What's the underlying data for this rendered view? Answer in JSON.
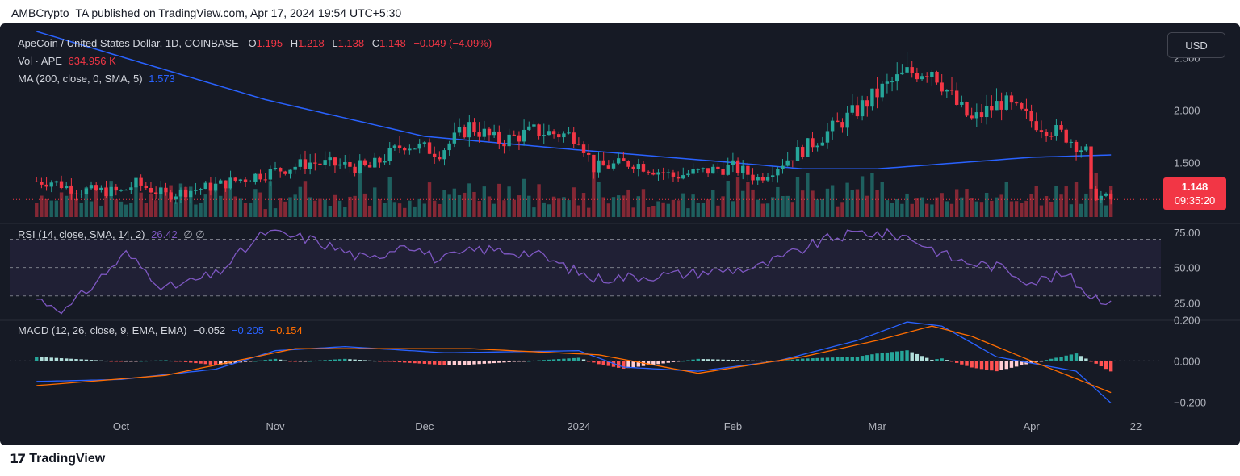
{
  "header": {
    "text": "AMBCrypto_TA published on TradingView.com, Apr 17, 2024 19:54 UTC+5:30"
  },
  "footer": {
    "logo_mark": "17",
    "brand": "TradingView"
  },
  "controls": {
    "currency_button": "USD"
  },
  "legend": {
    "symbol": "ApeCoin / United States Dollar, 1D, COINBASE",
    "o_label": "O",
    "o_value": "1.195",
    "h_label": "H",
    "h_value": "1.218",
    "l_label": "L",
    "l_value": "1.138",
    "c_label": "C",
    "c_value": "1.148",
    "change": "−0.049 (−4.09%)",
    "vol_label": "Vol · APE",
    "vol_value": "634.956 K",
    "ma_label": "MA (200, close, 0, SMA, 5)",
    "ma_value": "1.573",
    "rsi_label": "RSI (14, close, SMA, 14, 2)",
    "rsi_value": "26.42",
    "rsi_extra": "∅ ∅",
    "macd_label": "MACD (12, 26, close, 9, EMA, EMA)",
    "macd_hist": "−0.052",
    "macd_line": "−0.205",
    "macd_signal": "−0.154"
  },
  "price_tag": {
    "price": "1.148",
    "countdown": "09:35:20"
  },
  "colors": {
    "up": "#26a69a",
    "down": "#f23645",
    "ma": "#2962ff",
    "rsi": "#7e57c2",
    "macd": "#2962ff",
    "signal": "#ff6d00",
    "background": "#161a25"
  },
  "chart_data": [
    {
      "type": "candlestick",
      "title": "ApeCoin / United States Dollar, 1D, COINBASE",
      "y_ticks": [
        "2.500",
        "2.000",
        "1.500"
      ],
      "ylim": [
        0.95,
        2.75
      ],
      "x_ticks": [
        "Oct",
        "Nov",
        "Dec",
        "2024",
        "Feb",
        "Mar",
        "Apr",
        "22"
      ],
      "close_anchors": [
        {
          "date": "2023-09-17",
          "close": 1.32
        },
        {
          "date": "2023-09-22",
          "close": 1.24
        },
        {
          "date": "2023-10-01",
          "close": 1.22
        },
        {
          "date": "2023-10-04",
          "close": 1.3
        },
        {
          "date": "2023-10-10",
          "close": 1.19
        },
        {
          "date": "2023-10-20",
          "close": 1.28
        },
        {
          "date": "2023-10-30",
          "close": 1.4
        },
        {
          "date": "2023-11-08",
          "close": 1.5
        },
        {
          "date": "2023-11-20",
          "close": 1.45
        },
        {
          "date": "2023-11-27",
          "close": 1.68
        },
        {
          "date": "2023-12-04",
          "close": 1.6
        },
        {
          "date": "2023-12-10",
          "close": 1.85
        },
        {
          "date": "2023-12-16",
          "close": 1.7
        },
        {
          "date": "2023-12-23",
          "close": 1.8
        },
        {
          "date": "2024-01-01",
          "close": 1.75
        },
        {
          "date": "2024-01-04",
          "close": 1.45
        },
        {
          "date": "2024-01-12",
          "close": 1.5
        },
        {
          "date": "2024-01-20",
          "close": 1.37
        },
        {
          "date": "2024-02-01",
          "close": 1.46
        },
        {
          "date": "2024-02-06",
          "close": 1.35
        },
        {
          "date": "2024-02-18",
          "close": 1.72
        },
        {
          "date": "2024-02-26",
          "close": 2.0
        },
        {
          "date": "2024-03-02",
          "close": 2.2
        },
        {
          "date": "2024-03-07",
          "close": 2.35
        },
        {
          "date": "2024-03-12",
          "close": 2.4
        },
        {
          "date": "2024-03-17",
          "close": 2.05
        },
        {
          "date": "2024-03-20",
          "close": 1.9
        },
        {
          "date": "2024-03-26",
          "close": 2.08
        },
        {
          "date": "2024-04-01",
          "close": 1.9
        },
        {
          "date": "2024-04-08",
          "close": 1.75
        },
        {
          "date": "2024-04-12",
          "close": 1.6
        },
        {
          "date": "2024-04-13",
          "close": 1.2
        },
        {
          "date": "2024-04-17",
          "close": 1.148
        }
      ],
      "ma200_anchors": [
        {
          "date": "2023-09-14",
          "value": 2.75
        },
        {
          "date": "2023-10-30",
          "value": 2.1
        },
        {
          "date": "2023-12-01",
          "value": 1.75
        },
        {
          "date": "2024-01-01",
          "value": 1.62
        },
        {
          "date": "2024-02-01",
          "value": 1.5
        },
        {
          "date": "2024-02-15",
          "value": 1.44
        },
        {
          "date": "2024-03-01",
          "value": 1.44
        },
        {
          "date": "2024-04-01",
          "value": 1.55
        },
        {
          "date": "2024-04-17",
          "value": 1.573
        }
      ]
    },
    {
      "type": "line",
      "title": "RSI (14, close, SMA, 14, 2)",
      "y_ticks": [
        "75.00",
        "50.00",
        "25.00"
      ],
      "ylim": [
        15,
        80
      ],
      "bands": [
        70,
        50,
        30
      ],
      "rsi_anchors": [
        {
          "date": "2023-09-14",
          "value": 28
        },
        {
          "date": "2023-09-20",
          "value": 20
        },
        {
          "date": "2023-10-02",
          "value": 60
        },
        {
          "date": "2023-10-10",
          "value": 35
        },
        {
          "date": "2023-10-20",
          "value": 45
        },
        {
          "date": "2023-10-30",
          "value": 75
        },
        {
          "date": "2023-11-08",
          "value": 70
        },
        {
          "date": "2023-11-20",
          "value": 55
        },
        {
          "date": "2023-11-27",
          "value": 68
        },
        {
          "date": "2023-12-04",
          "value": 55
        },
        {
          "date": "2023-12-12",
          "value": 63
        },
        {
          "date": "2023-12-23",
          "value": 60
        },
        {
          "date": "2024-01-04",
          "value": 42
        },
        {
          "date": "2024-01-20",
          "value": 45
        },
        {
          "date": "2024-02-06",
          "value": 50
        },
        {
          "date": "2024-02-20",
          "value": 70
        },
        {
          "date": "2024-02-27",
          "value": 75
        },
        {
          "date": "2024-03-07",
          "value": 72
        },
        {
          "date": "2024-03-17",
          "value": 55
        },
        {
          "date": "2024-03-26",
          "value": 50
        },
        {
          "date": "2024-04-01",
          "value": 40
        },
        {
          "date": "2024-04-08",
          "value": 45
        },
        {
          "date": "2024-04-13",
          "value": 30
        },
        {
          "date": "2024-04-17",
          "value": 26.42
        }
      ]
    },
    {
      "type": "line",
      "title": "MACD (12, 26, close, 9, EMA, EMA)",
      "y_ticks": [
        "0.200",
        "0.000",
        "−0.200"
      ],
      "ylim": [
        -0.25,
        0.21
      ],
      "macd_anchors": [
        {
          "date": "2023-09-14",
          "value": -0.1
        },
        {
          "date": "2023-10-01",
          "value": -0.09
        },
        {
          "date": "2023-10-20",
          "value": -0.04
        },
        {
          "date": "2023-11-01",
          "value": 0.05
        },
        {
          "date": "2023-11-15",
          "value": 0.07
        },
        {
          "date": "2023-12-05",
          "value": 0.04
        },
        {
          "date": "2024-01-01",
          "value": 0.05
        },
        {
          "date": "2024-01-10",
          "value": -0.03
        },
        {
          "date": "2024-01-25",
          "value": -0.05
        },
        {
          "date": "2024-02-10",
          "value": 0.0
        },
        {
          "date": "2024-02-26",
          "value": 0.1
        },
        {
          "date": "2024-03-07",
          "value": 0.19
        },
        {
          "date": "2024-03-14",
          "value": 0.17
        },
        {
          "date": "2024-03-25",
          "value": 0.02
        },
        {
          "date": "2024-04-10",
          "value": -0.05
        },
        {
          "date": "2024-04-17",
          "value": -0.205
        }
      ],
      "signal_anchors": [
        {
          "date": "2023-09-14",
          "value": -0.12
        },
        {
          "date": "2023-10-10",
          "value": -0.07
        },
        {
          "date": "2023-11-05",
          "value": 0.06
        },
        {
          "date": "2023-12-10",
          "value": 0.06
        },
        {
          "date": "2024-01-05",
          "value": 0.03
        },
        {
          "date": "2024-01-25",
          "value": -0.06
        },
        {
          "date": "2024-02-15",
          "value": 0.02
        },
        {
          "date": "2024-03-01",
          "value": 0.1
        },
        {
          "date": "2024-03-12",
          "value": 0.17
        },
        {
          "date": "2024-03-20",
          "value": 0.12
        },
        {
          "date": "2024-04-01",
          "value": 0.0
        },
        {
          "date": "2024-04-17",
          "value": -0.154
        }
      ]
    }
  ]
}
